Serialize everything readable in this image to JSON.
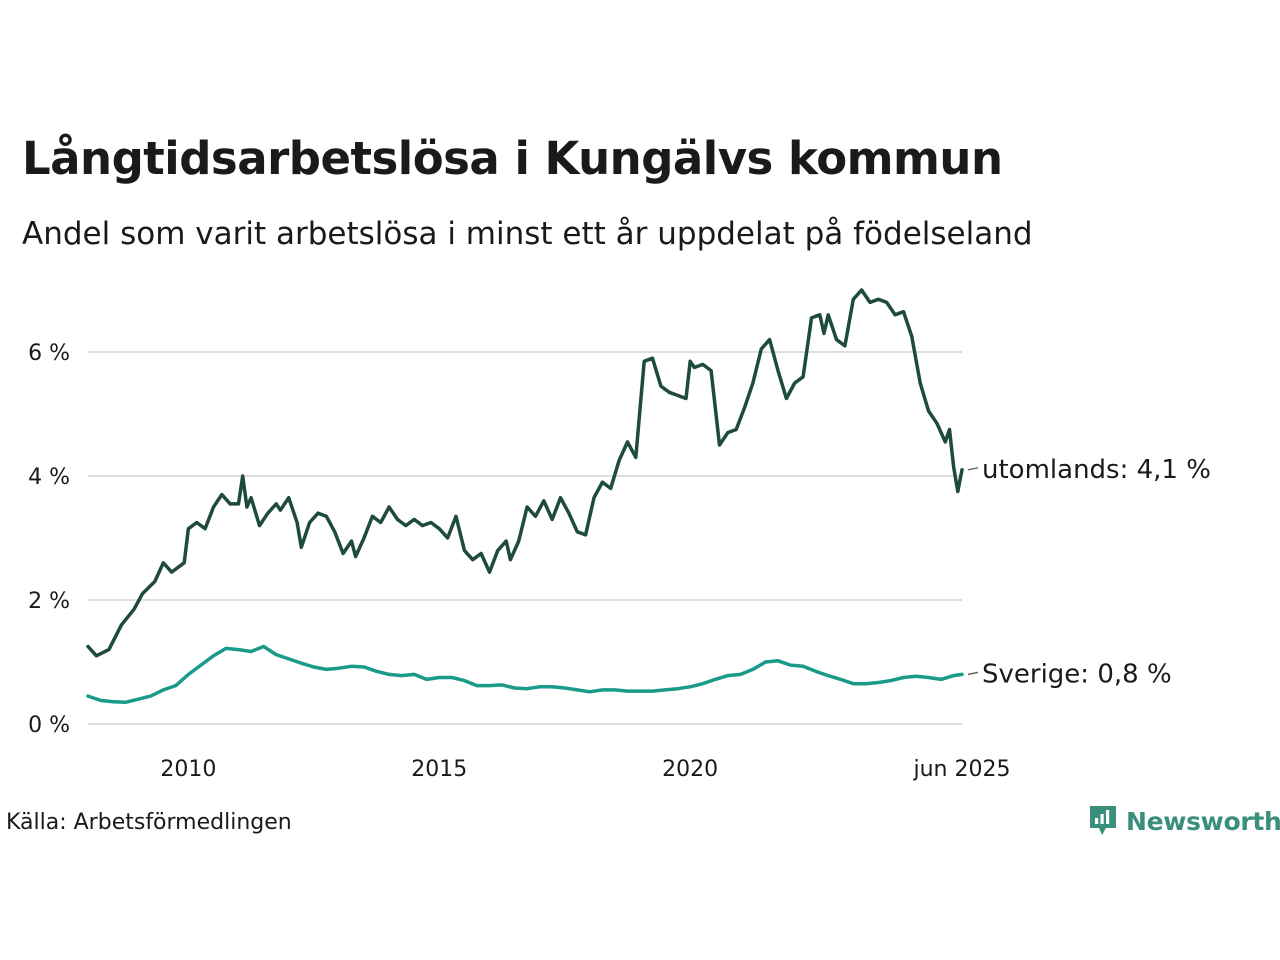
{
  "title": "Långtidsarbetslösa i Kungälvs kommun",
  "subtitle": "Andel som varit arbetslösa i minst ett år uppdelat på födelseland",
  "source": "Källa: Arbetsförmedlingen",
  "brand": "Newsworthy",
  "colors": {
    "utomlands": "#1f4a3f",
    "sverige": "#1a9a89",
    "grid": "#dedede",
    "brand": "#3a8f7c"
  },
  "chart_data": {
    "type": "line",
    "x_start": "2008-01",
    "x_end": "2025-06",
    "ylim": [
      0,
      7
    ],
    "yticks": [
      0,
      2,
      4,
      6
    ],
    "ytick_labels": [
      "0 %",
      "2 %",
      "4 %",
      "6 %"
    ],
    "xticks": [
      "2010-01",
      "2015-01",
      "2020-01",
      "2025-06"
    ],
    "xtick_labels": [
      "2010",
      "2015",
      "2020",
      "jun 2025"
    ],
    "grid": true,
    "series": [
      {
        "name": "utomlands",
        "end_label": "utomlands: 4,1 %",
        "anchors": [
          [
            "2008-01",
            1.25
          ],
          [
            "2008-03",
            1.1
          ],
          [
            "2008-06",
            1.2
          ],
          [
            "2008-09",
            1.6
          ],
          [
            "2008-12",
            1.85
          ],
          [
            "2009-02",
            2.1
          ],
          [
            "2009-05",
            2.3
          ],
          [
            "2009-07",
            2.6
          ],
          [
            "2009-09",
            2.45
          ],
          [
            "2009-12",
            2.6
          ],
          [
            "2010-01",
            3.15
          ],
          [
            "2010-03",
            3.25
          ],
          [
            "2010-05",
            3.15
          ],
          [
            "2010-07",
            3.5
          ],
          [
            "2010-09",
            3.7
          ],
          [
            "2010-11",
            3.55
          ],
          [
            "2011-01",
            3.55
          ],
          [
            "2011-02",
            4.0
          ],
          [
            "2011-03",
            3.5
          ],
          [
            "2011-04",
            3.65
          ],
          [
            "2011-06",
            3.2
          ],
          [
            "2011-08",
            3.4
          ],
          [
            "2011-10",
            3.55
          ],
          [
            "2011-11",
            3.45
          ],
          [
            "2012-01",
            3.65
          ],
          [
            "2012-03",
            3.25
          ],
          [
            "2012-04",
            2.85
          ],
          [
            "2012-06",
            3.25
          ],
          [
            "2012-08",
            3.4
          ],
          [
            "2012-10",
            3.35
          ],
          [
            "2012-12",
            3.1
          ],
          [
            "2013-02",
            2.75
          ],
          [
            "2013-04",
            2.95
          ],
          [
            "2013-05",
            2.7
          ],
          [
            "2013-07",
            3.0
          ],
          [
            "2013-09",
            3.35
          ],
          [
            "2013-11",
            3.25
          ],
          [
            "2014-01",
            3.5
          ],
          [
            "2014-03",
            3.3
          ],
          [
            "2014-05",
            3.2
          ],
          [
            "2014-07",
            3.3
          ],
          [
            "2014-09",
            3.2
          ],
          [
            "2014-11",
            3.25
          ],
          [
            "2015-01",
            3.15
          ],
          [
            "2015-03",
            3.0
          ],
          [
            "2015-05",
            3.35
          ],
          [
            "2015-07",
            2.8
          ],
          [
            "2015-09",
            2.65
          ],
          [
            "2015-11",
            2.75
          ],
          [
            "2016-01",
            2.45
          ],
          [
            "2016-03",
            2.8
          ],
          [
            "2016-05",
            2.95
          ],
          [
            "2016-06",
            2.65
          ],
          [
            "2016-08",
            2.95
          ],
          [
            "2016-10",
            3.5
          ],
          [
            "2016-12",
            3.35
          ],
          [
            "2017-02",
            3.6
          ],
          [
            "2017-04",
            3.3
          ],
          [
            "2017-06",
            3.65
          ],
          [
            "2017-08",
            3.4
          ],
          [
            "2017-10",
            3.1
          ],
          [
            "2017-12",
            3.05
          ],
          [
            "2018-02",
            3.65
          ],
          [
            "2018-04",
            3.9
          ],
          [
            "2018-06",
            3.8
          ],
          [
            "2018-08",
            4.25
          ],
          [
            "2018-10",
            4.55
          ],
          [
            "2018-12",
            4.3
          ],
          [
            "2019-02",
            5.85
          ],
          [
            "2019-04",
            5.9
          ],
          [
            "2019-06",
            5.45
          ],
          [
            "2019-08",
            5.35
          ],
          [
            "2019-10",
            5.3
          ],
          [
            "2019-12",
            5.25
          ],
          [
            "2020-01",
            5.85
          ],
          [
            "2020-02",
            5.75
          ],
          [
            "2020-04",
            5.8
          ],
          [
            "2020-06",
            5.7
          ],
          [
            "2020-08",
            4.5
          ],
          [
            "2020-10",
            4.7
          ],
          [
            "2020-12",
            4.75
          ],
          [
            "2021-02",
            5.1
          ],
          [
            "2021-04",
            5.5
          ],
          [
            "2021-06",
            6.05
          ],
          [
            "2021-08",
            6.2
          ],
          [
            "2021-10",
            5.7
          ],
          [
            "2021-12",
            5.25
          ],
          [
            "2022-02",
            5.5
          ],
          [
            "2022-04",
            5.6
          ],
          [
            "2022-06",
            6.55
          ],
          [
            "2022-08",
            6.6
          ],
          [
            "2022-09",
            6.3
          ],
          [
            "2022-10",
            6.6
          ],
          [
            "2022-12",
            6.2
          ],
          [
            "2023-02",
            6.1
          ],
          [
            "2023-04",
            6.85
          ],
          [
            "2023-06",
            7.0
          ],
          [
            "2023-08",
            6.8
          ],
          [
            "2023-10",
            6.85
          ],
          [
            "2023-12",
            6.8
          ],
          [
            "2024-02",
            6.6
          ],
          [
            "2024-04",
            6.65
          ],
          [
            "2024-06",
            6.25
          ],
          [
            "2024-08",
            5.5
          ],
          [
            "2024-10",
            5.05
          ],
          [
            "2024-12",
            4.85
          ],
          [
            "2025-01",
            4.7
          ],
          [
            "2025-02",
            4.55
          ],
          [
            "2025-03",
            4.75
          ],
          [
            "2025-04",
            4.15
          ],
          [
            "2025-05",
            3.75
          ],
          [
            "2025-06",
            4.1
          ]
        ]
      },
      {
        "name": "Sverige",
        "end_label": "Sverige: 0,8 %",
        "anchors": [
          [
            "2008-01",
            0.45
          ],
          [
            "2008-04",
            0.38
          ],
          [
            "2008-07",
            0.36
          ],
          [
            "2008-10",
            0.35
          ],
          [
            "2009-01",
            0.4
          ],
          [
            "2009-04",
            0.45
          ],
          [
            "2009-07",
            0.55
          ],
          [
            "2009-10",
            0.62
          ],
          [
            "2010-01",
            0.8
          ],
          [
            "2010-04",
            0.95
          ],
          [
            "2010-07",
            1.1
          ],
          [
            "2010-10",
            1.22
          ],
          [
            "2011-01",
            1.2
          ],
          [
            "2011-04",
            1.17
          ],
          [
            "2011-07",
            1.25
          ],
          [
            "2011-10",
            1.12
          ],
          [
            "2012-01",
            1.05
          ],
          [
            "2012-04",
            0.98
          ],
          [
            "2012-07",
            0.92
          ],
          [
            "2012-10",
            0.88
          ],
          [
            "2013-01",
            0.9
          ],
          [
            "2013-04",
            0.93
          ],
          [
            "2013-07",
            0.92
          ],
          [
            "2013-10",
            0.85
          ],
          [
            "2014-01",
            0.8
          ],
          [
            "2014-04",
            0.78
          ],
          [
            "2014-07",
            0.8
          ],
          [
            "2014-10",
            0.72
          ],
          [
            "2015-01",
            0.75
          ],
          [
            "2015-04",
            0.75
          ],
          [
            "2015-07",
            0.7
          ],
          [
            "2015-10",
            0.62
          ],
          [
            "2016-01",
            0.62
          ],
          [
            "2016-04",
            0.63
          ],
          [
            "2016-07",
            0.58
          ],
          [
            "2016-10",
            0.57
          ],
          [
            "2017-01",
            0.6
          ],
          [
            "2017-04",
            0.6
          ],
          [
            "2017-07",
            0.58
          ],
          [
            "2017-10",
            0.55
          ],
          [
            "2018-01",
            0.52
          ],
          [
            "2018-04",
            0.55
          ],
          [
            "2018-07",
            0.55
          ],
          [
            "2018-10",
            0.53
          ],
          [
            "2019-01",
            0.53
          ],
          [
            "2019-04",
            0.53
          ],
          [
            "2019-07",
            0.55
          ],
          [
            "2019-10",
            0.57
          ],
          [
            "2020-01",
            0.6
          ],
          [
            "2020-04",
            0.65
          ],
          [
            "2020-07",
            0.72
          ],
          [
            "2020-10",
            0.78
          ],
          [
            "2021-01",
            0.8
          ],
          [
            "2021-04",
            0.88
          ],
          [
            "2021-07",
            1.0
          ],
          [
            "2021-10",
            1.02
          ],
          [
            "2022-01",
            0.95
          ],
          [
            "2022-04",
            0.93
          ],
          [
            "2022-07",
            0.85
          ],
          [
            "2022-10",
            0.78
          ],
          [
            "2023-01",
            0.72
          ],
          [
            "2023-04",
            0.65
          ],
          [
            "2023-07",
            0.65
          ],
          [
            "2023-10",
            0.67
          ],
          [
            "2024-01",
            0.7
          ],
          [
            "2024-04",
            0.75
          ],
          [
            "2024-07",
            0.77
          ],
          [
            "2024-10",
            0.75
          ],
          [
            "2025-01",
            0.72
          ],
          [
            "2025-04",
            0.78
          ],
          [
            "2025-06",
            0.8
          ]
        ]
      }
    ]
  }
}
